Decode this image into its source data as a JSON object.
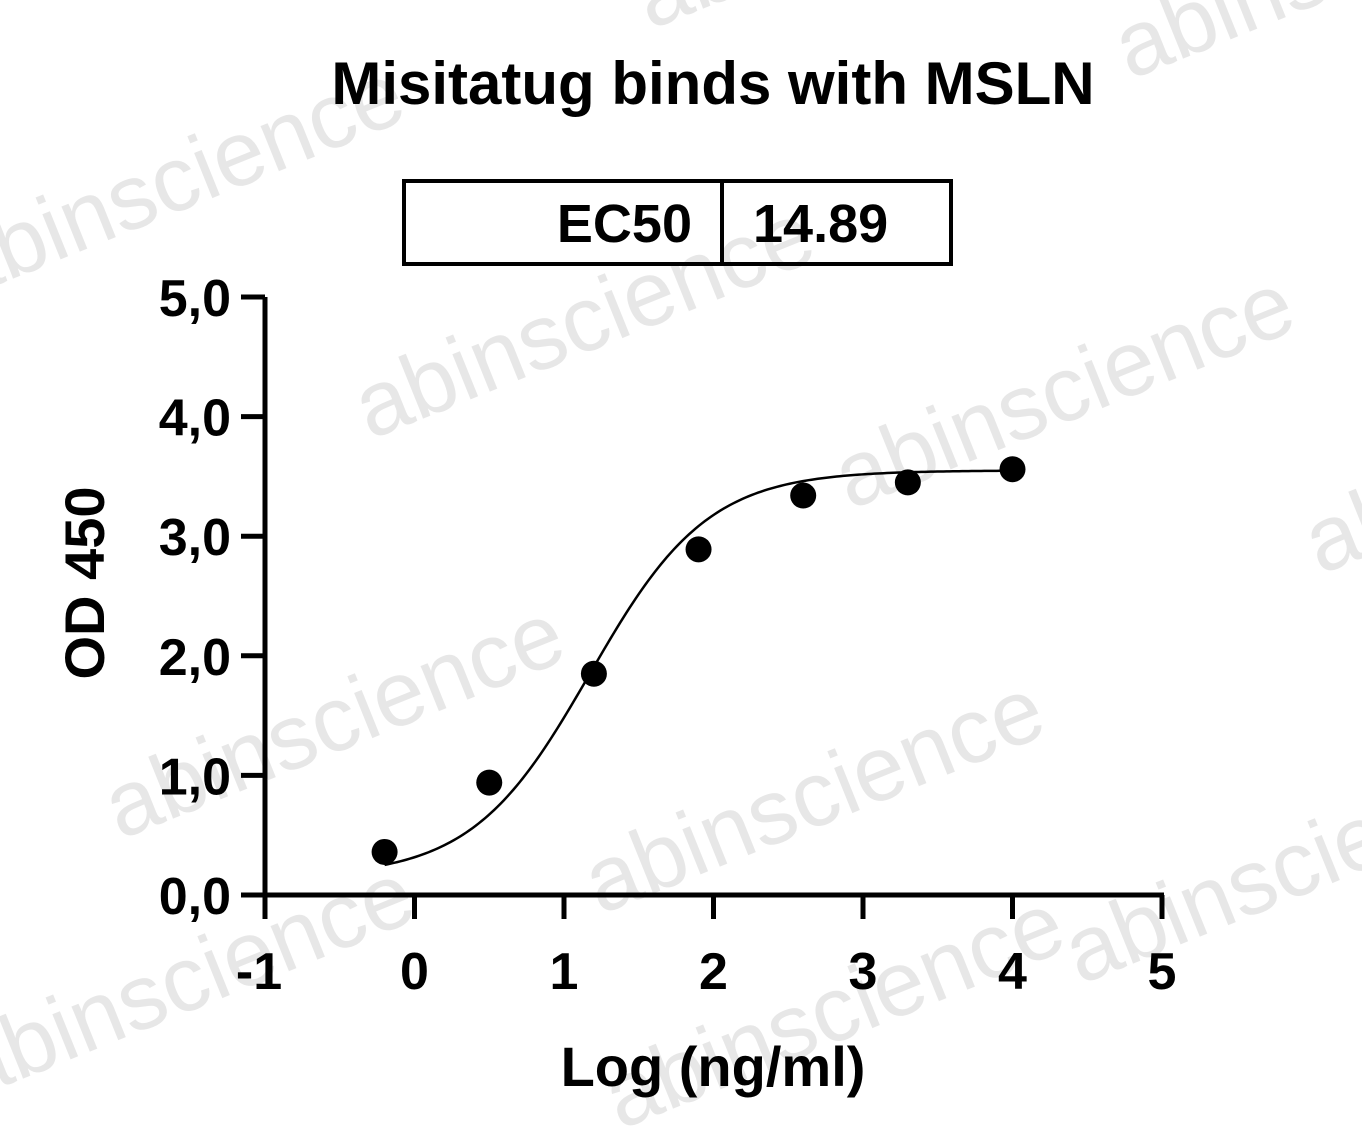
{
  "chart_data": {
    "type": "scatter",
    "title": "Misitatug binds with MSLN",
    "xlabel": "Log (ng/ml)",
    "ylabel": "OD 450",
    "xlim": [
      -1,
      5
    ],
    "ylim": [
      0,
      5
    ],
    "x_ticks": [
      -1,
      0,
      1,
      2,
      3,
      4,
      5
    ],
    "x_tick_labels": [
      "-1",
      "0",
      "1",
      "2",
      "3",
      "4",
      "5"
    ],
    "y_ticks": [
      0,
      1,
      2,
      3,
      4,
      5
    ],
    "y_tick_labels": [
      "0,0",
      "1,0",
      "2,0",
      "3,0",
      "4,0",
      "5,0"
    ],
    "series": [
      {
        "x": [
          -0.2,
          0.5,
          1.2,
          1.9,
          2.6,
          3.3,
          4.0
        ],
        "y": [
          0.36,
          0.94,
          1.85,
          2.89,
          3.34,
          3.45,
          3.56
        ],
        "marker": "circle",
        "fit": "sigmoidal"
      }
    ],
    "fit_curve": {
      "bottom": 0.15,
      "top": 3.55,
      "logEC50": 1.173,
      "hill": 1.1
    },
    "ec50_table": {
      "label": "EC50",
      "value": "14.89"
    },
    "grid": false,
    "legend": "none"
  },
  "watermark": "abinscience",
  "colors": {
    "ink": "#000000",
    "watermark": "#d4d4d4"
  }
}
